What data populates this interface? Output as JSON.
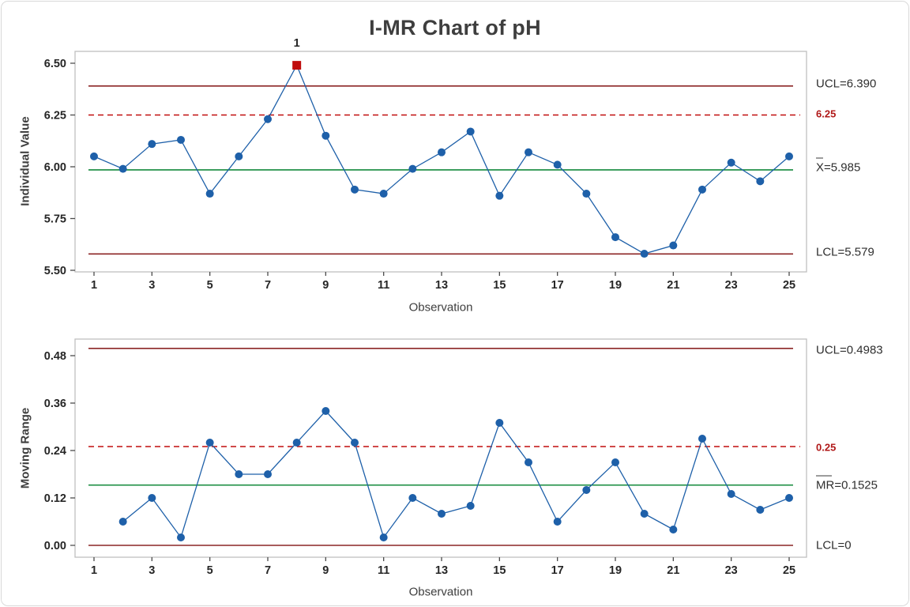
{
  "title": "I-MR Chart of pH",
  "colors": {
    "series_blue": "#1e60a9",
    "limit_dark_red": "#8c2626",
    "spec_bright_red": "#c00d0d",
    "spec_label_red": "#b01818",
    "center_green": "#148a3c",
    "frame_gray": "#bfbfbf",
    "tick_gray": "#4a4a4a",
    "tick_text": "#262626",
    "flag_text": "#595959",
    "out_of_control_red": "#c00d0d"
  },
  "chart_data": [
    {
      "type": "line",
      "name": "individuals-chart",
      "xlabel": "Observation",
      "ylabel": "Individual Value",
      "x": [
        1,
        2,
        3,
        4,
        5,
        6,
        7,
        8,
        9,
        10,
        11,
        12,
        13,
        14,
        15,
        16,
        17,
        18,
        19,
        20,
        21,
        22,
        23,
        24,
        25
      ],
      "values": [
        6.05,
        5.99,
        6.11,
        6.13,
        5.87,
        6.05,
        6.23,
        6.49,
        6.15,
        5.89,
        5.87,
        5.99,
        6.07,
        6.17,
        5.86,
        6.07,
        6.01,
        5.87,
        5.66,
        5.58,
        5.62,
        5.89,
        6.02,
        5.93,
        6.05
      ],
      "center_line": 5.985,
      "ucl": 6.39,
      "lcl": 5.579,
      "spec_line": 6.25,
      "ylim": [
        5.496,
        6.557
      ],
      "ytick_values": [
        5.5,
        5.75,
        6.0,
        6.25,
        6.5
      ],
      "ytick_labels": [
        "5.50",
        "5.75",
        "6.00",
        "6.25",
        "6.50"
      ],
      "xtick_values": [
        1,
        3,
        5,
        7,
        9,
        11,
        13,
        15,
        17,
        19,
        21,
        23,
        25
      ],
      "xtick_labels": [
        "1",
        "3",
        "5",
        "7",
        "9",
        "11",
        "13",
        "15",
        "17",
        "19",
        "21",
        "23",
        "25"
      ],
      "grid": false,
      "labels_position": "right",
      "labels": {
        "ucl": "UCL=6.390",
        "center": "X=5.985",
        "lcl": "LCL=5.579",
        "spec": "6.25"
      },
      "out_of_control": [
        {
          "obs": 8,
          "flag": "1"
        }
      ]
    },
    {
      "type": "line",
      "name": "moving-range-chart",
      "xlabel": "Observation",
      "ylabel": "Moving Range",
      "x": [
        2,
        3,
        4,
        5,
        6,
        7,
        8,
        9,
        10,
        11,
        12,
        13,
        14,
        15,
        16,
        17,
        18,
        19,
        20,
        21,
        22,
        23,
        24,
        25
      ],
      "values": [
        0.06,
        0.12,
        0.02,
        0.26,
        0.18,
        0.18,
        0.26,
        0.34,
        0.26,
        0.02,
        0.12,
        0.08,
        0.1,
        0.31,
        0.21,
        0.06,
        0.14,
        0.21,
        0.08,
        0.04,
        0.27,
        0.13,
        0.09,
        0.12
      ],
      "center_line": 0.1525,
      "ucl": 0.4983,
      "lcl": 0,
      "spec_line": 0.25,
      "ylim": [
        -0.03,
        0.522
      ],
      "ytick_values": [
        0.0,
        0.12,
        0.24,
        0.36,
        0.48
      ],
      "ytick_labels": [
        "0.00",
        "0.12",
        "0.24",
        "0.36",
        "0.48"
      ],
      "xtick_values": [
        1,
        3,
        5,
        7,
        9,
        11,
        13,
        15,
        17,
        19,
        21,
        23,
        25
      ],
      "xtick_labels": [
        "1",
        "3",
        "5",
        "7",
        "9",
        "11",
        "13",
        "15",
        "17",
        "19",
        "21",
        "23",
        "25"
      ],
      "grid": false,
      "labels_position": "right",
      "labels": {
        "ucl": "UCL=0.4983",
        "center": "MR=0.1525",
        "lcl": "LCL=0",
        "spec": "0.25"
      },
      "out_of_control": []
    }
  ]
}
